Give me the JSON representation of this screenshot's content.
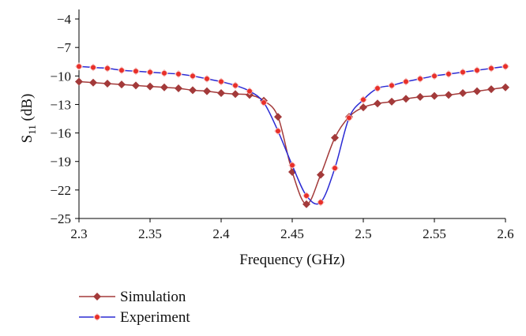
{
  "chart_data": {
    "type": "line",
    "title": "",
    "xlabel": "Frequency (GHz)",
    "ylabel_main": "S",
    "ylabel_sub": "11",
    "ylabel_unit": " (dB)",
    "xlim": [
      2.3,
      2.6
    ],
    "ylim": [
      -25,
      -3
    ],
    "xticks": [
      "2.3",
      "2.35",
      "2.4",
      "2.45",
      "2.5",
      "2.55",
      "2.6"
    ],
    "yticks": [
      "-4",
      "-7",
      "-10",
      "-13",
      "-16",
      "-19",
      "-22",
      "-25"
    ],
    "grid": false,
    "legend_position": "bottom-left",
    "series": [
      {
        "name": "Simulation",
        "color": "#a33a3a",
        "marker": "diamond",
        "x": [
          2.3,
          2.31,
          2.32,
          2.33,
          2.34,
          2.35,
          2.36,
          2.37,
          2.38,
          2.39,
          2.4,
          2.41,
          2.42,
          2.43,
          2.44,
          2.45,
          2.46,
          2.47,
          2.48,
          2.49,
          2.5,
          2.51,
          2.52,
          2.53,
          2.54,
          2.55,
          2.56,
          2.57,
          2.58,
          2.59,
          2.6
        ],
        "y": [
          -10.6,
          -10.7,
          -10.8,
          -10.9,
          -11.0,
          -11.1,
          -11.2,
          -11.3,
          -11.5,
          -11.6,
          -11.8,
          -11.9,
          -12.0,
          -12.6,
          -14.3,
          -20.1,
          -23.5,
          -20.4,
          -16.5,
          -14.3,
          -13.3,
          -12.9,
          -12.7,
          -12.4,
          -12.2,
          -12.1,
          -12.0,
          -11.8,
          -11.6,
          -11.4,
          -11.2
        ]
      },
      {
        "name": "Experiment",
        "color": "#2b2bd4",
        "marker_color": "#e8302a",
        "marker": "circle",
        "x": [
          2.3,
          2.31,
          2.32,
          2.33,
          2.34,
          2.35,
          2.36,
          2.37,
          2.38,
          2.39,
          2.4,
          2.41,
          2.42,
          2.43,
          2.44,
          2.45,
          2.46,
          2.47,
          2.48,
          2.49,
          2.5,
          2.51,
          2.52,
          2.53,
          2.54,
          2.55,
          2.56,
          2.57,
          2.58,
          2.59,
          2.6
        ],
        "y": [
          -9.0,
          -9.1,
          -9.2,
          -9.4,
          -9.5,
          -9.6,
          -9.7,
          -9.8,
          -10.0,
          -10.3,
          -10.6,
          -11.0,
          -11.6,
          -12.8,
          -15.8,
          -19.4,
          -22.6,
          -23.3,
          -19.7,
          -14.4,
          -12.5,
          -11.3,
          -11.0,
          -10.6,
          -10.3,
          -10.0,
          -9.8,
          -9.6,
          -9.4,
          -9.2,
          -9.0
        ]
      }
    ]
  }
}
